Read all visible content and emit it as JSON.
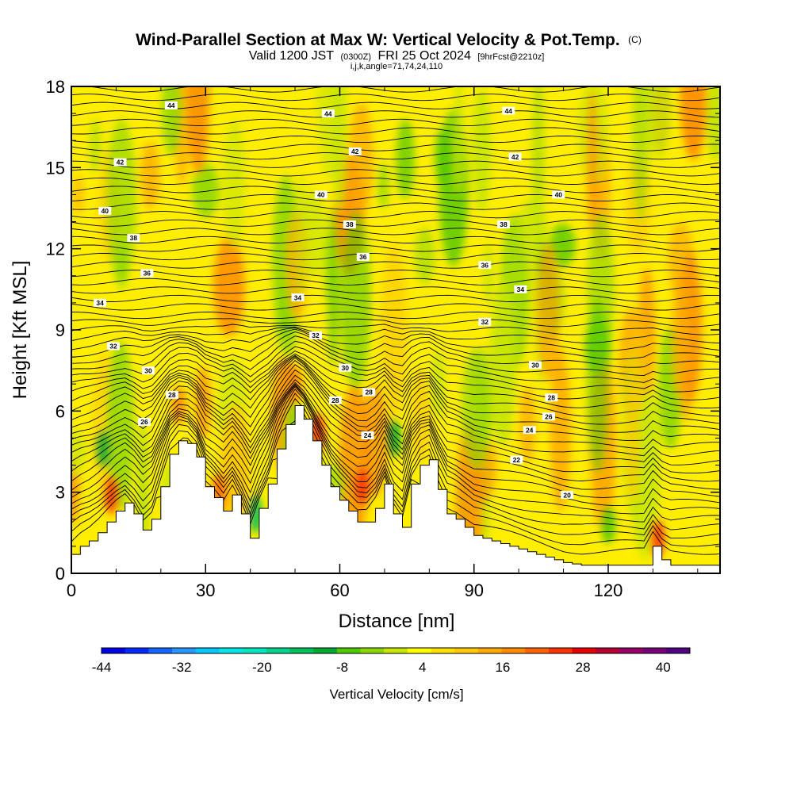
{
  "chart_data": {
    "type": "heatmap",
    "title": {
      "main": "Wind-Parallel Section at Max W: Vertical Velocity & Pot.Temp.",
      "mark": "(C)",
      "valid_prefix": "Valid 1200 JST",
      "valid_utc": "(0300Z)",
      "valid_date": "FRI 25 Oct 2024",
      "forecast": "[9hrFcst@2210z]",
      "indices": "i,j,k,angle=71,74,24,110"
    },
    "xlabel": "Distance [nm]",
    "ylabel": "Height [Kft MSL]",
    "xlim": [
      0,
      145
    ],
    "ylim": [
      0,
      18
    ],
    "x_ticks": [
      0,
      30,
      60,
      90,
      120
    ],
    "x_tick_labels": [
      "0",
      "30",
      "60",
      "90",
      "120"
    ],
    "x_minor_ticks": [
      10,
      20,
      40,
      50,
      70,
      80,
      100,
      110,
      130,
      140
    ],
    "y_ticks": [
      0,
      3,
      6,
      9,
      12,
      15,
      18
    ],
    "y_tick_labels": [
      "0",
      "3",
      "6",
      "9",
      "12",
      "15",
      "18"
    ],
    "grid": false,
    "colorbar": {
      "label": "Vertical Velocity [cm/s]",
      "orientation": "horizontal",
      "placement": "bottom",
      "min": -44,
      "max": 44,
      "step": 4,
      "tick_values": [
        -44,
        -32,
        -20,
        -8,
        4,
        16,
        28,
        40
      ],
      "tick_labels": [
        "-44",
        "-32",
        "-20",
        "-8",
        "4",
        "16",
        "28",
        "40"
      ],
      "colors": [
        "#0000e6",
        "#0028ff",
        "#1464ff",
        "#2896ff",
        "#00c8ff",
        "#00e6e6",
        "#00e6be",
        "#00d28c",
        "#00be5a",
        "#00aa32",
        "#50c800",
        "#8cd700",
        "#c8e600",
        "#ffff00",
        "#ffe100",
        "#ffc800",
        "#ffaa00",
        "#ff8c00",
        "#ff6400",
        "#ff3200",
        "#e60000",
        "#b40032",
        "#960064",
        "#780078",
        "#500082"
      ]
    },
    "terrain_kft": {
      "x": [
        0,
        2,
        4,
        6,
        8,
        10,
        12,
        14,
        16,
        18,
        20,
        22,
        24,
        26,
        28,
        30,
        32,
        34,
        36,
        38,
        40,
        42,
        44,
        46,
        48,
        50,
        52,
        54,
        56,
        58,
        60,
        62,
        64,
        66,
        68,
        70,
        72,
        74,
        76,
        78,
        80,
        82,
        84,
        86,
        88,
        90,
        92,
        94,
        96,
        98,
        100,
        102,
        104,
        106,
        108,
        110,
        112,
        114,
        116,
        118,
        120,
        122,
        124,
        126,
        128,
        130,
        132,
        134,
        136,
        138,
        140,
        142,
        145
      ],
      "h": [
        0.7,
        1.0,
        1.2,
        1.5,
        1.9,
        2.3,
        2.6,
        2.2,
        1.6,
        2.0,
        3.2,
        4.4,
        4.9,
        4.8,
        4.3,
        3.2,
        2.8,
        2.3,
        2.9,
        2.2,
        1.3,
        2.4,
        3.3,
        4.6,
        5.5,
        6.2,
        5.7,
        4.9,
        4.0,
        3.2,
        2.7,
        2.3,
        1.9,
        1.9,
        2.4,
        3.3,
        2.2,
        1.7,
        3.3,
        4.0,
        4.2,
        3.1,
        2.2,
        2.0,
        1.7,
        1.4,
        1.3,
        1.2,
        1.1,
        1.0,
        0.9,
        0.8,
        0.7,
        0.6,
        0.5,
        0.4,
        0.35,
        0.3,
        0.3,
        0.3,
        0.3,
        0.3,
        0.3,
        0.3,
        0.3,
        1.0,
        0.5,
        0.3,
        0.3,
        0.3,
        0.3,
        0.3,
        0.3
      ]
    },
    "isentrope_labels": [
      {
        "text": "44",
        "x": 22.3,
        "y": 17.3
      },
      {
        "text": "44",
        "x": 57.4,
        "y": 17.0
      },
      {
        "text": "44",
        "x": 97.7,
        "y": 17.1
      },
      {
        "text": "42",
        "x": 10.9,
        "y": 15.2
      },
      {
        "text": "42",
        "x": 63.4,
        "y": 15.6
      },
      {
        "text": "42",
        "x": 99.2,
        "y": 15.4
      },
      {
        "text": "40",
        "x": 7.5,
        "y": 13.4
      },
      {
        "text": "40",
        "x": 55.8,
        "y": 14.0
      },
      {
        "text": "40",
        "x": 108.9,
        "y": 14.0
      },
      {
        "text": "38",
        "x": 13.9,
        "y": 12.4
      },
      {
        "text": "38",
        "x": 62.2,
        "y": 12.9
      },
      {
        "text": "38",
        "x": 96.6,
        "y": 12.9
      },
      {
        "text": "36",
        "x": 16.9,
        "y": 11.1
      },
      {
        "text": "36",
        "x": 65.2,
        "y": 11.7
      },
      {
        "text": "36",
        "x": 92.4,
        "y": 11.4
      },
      {
        "text": "34",
        "x": 6.4,
        "y": 10.0
      },
      {
        "text": "34",
        "x": 50.6,
        "y": 10.2
      },
      {
        "text": "34",
        "x": 100.4,
        "y": 10.5
      },
      {
        "text": "32",
        "x": 9.4,
        "y": 8.4
      },
      {
        "text": "32",
        "x": 54.6,
        "y": 8.8
      },
      {
        "text": "32",
        "x": 92.4,
        "y": 9.3
      },
      {
        "text": "30",
        "x": 17.2,
        "y": 7.5
      },
      {
        "text": "30",
        "x": 61.2,
        "y": 7.6
      },
      {
        "text": "30",
        "x": 103.7,
        "y": 7.7
      },
      {
        "text": "28",
        "x": 22.5,
        "y": 6.6
      },
      {
        "text": "28",
        "x": 66.5,
        "y": 6.7
      },
      {
        "text": "28",
        "x": 107.3,
        "y": 6.5
      },
      {
        "text": "28",
        "x": 59.0,
        "y": 6.4
      },
      {
        "text": "26",
        "x": 16.3,
        "y": 5.6
      },
      {
        "text": "26",
        "x": 106.7,
        "y": 5.8
      },
      {
        "text": "24",
        "x": 66.2,
        "y": 5.1
      },
      {
        "text": "24",
        "x": 102.4,
        "y": 5.3
      },
      {
        "text": "22",
        "x": 99.5,
        "y": 4.2
      },
      {
        "text": "20",
        "x": 110.8,
        "y": 2.9
      }
    ]
  }
}
